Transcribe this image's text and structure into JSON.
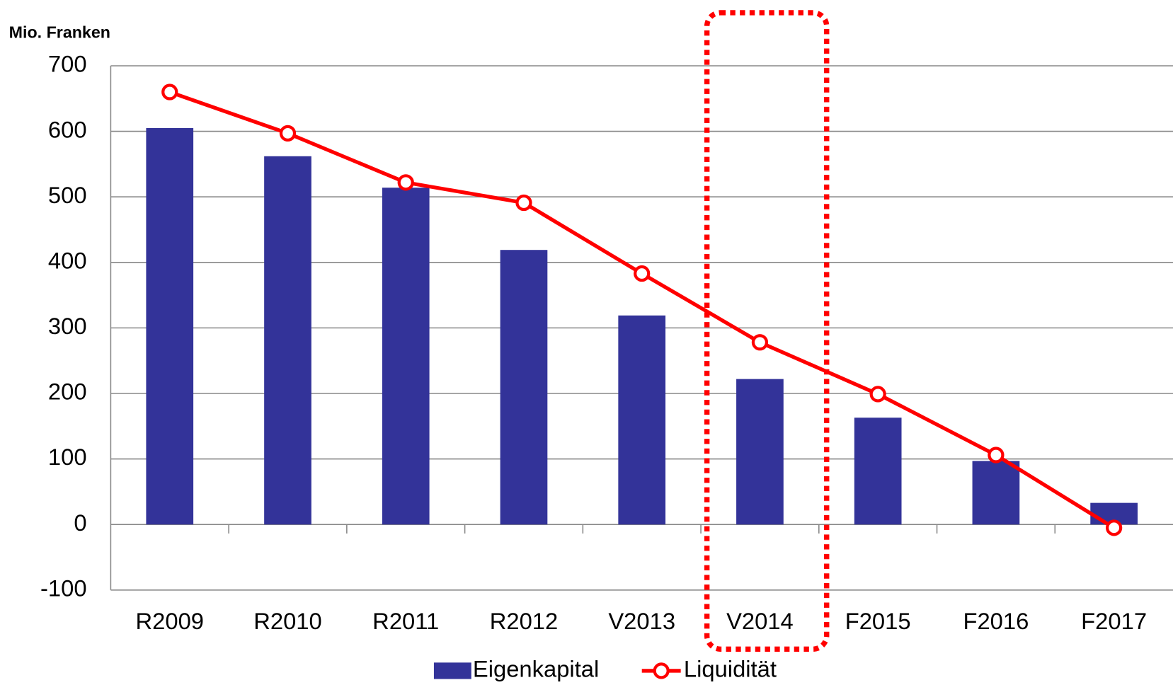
{
  "chart_data": {
    "type": "bar_line",
    "y_label": "Mio. Franken",
    "categories": [
      "R2009",
      "R2010",
      "R2011",
      "R2012",
      "V2013",
      "V2014",
      "F2015",
      "F2016",
      "F2017"
    ],
    "series": [
      {
        "name": "Eigenkapital",
        "type": "bar",
        "color": "#333399",
        "values": [
          605,
          562,
          514,
          419,
          319,
          222,
          163,
          97,
          33
        ]
      },
      {
        "name": "Liquidität",
        "type": "line",
        "color": "#ff0000",
        "values": [
          660,
          597,
          522,
          491,
          383,
          278,
          199,
          106,
          -5
        ]
      }
    ],
    "ylim": [
      -100,
      700
    ],
    "yticks": [
      -100,
      0,
      100,
      200,
      300,
      400,
      500,
      600,
      700
    ],
    "grid": true,
    "legend": "bottom"
  }
}
